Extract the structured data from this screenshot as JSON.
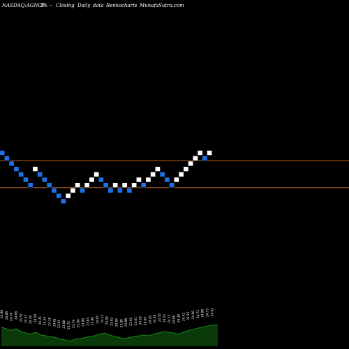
{
  "header": {
    "symbol": "NASDAQ:AGNCP",
    "change": "3% --",
    "closing": "Closing",
    "period": "Daily",
    "data": "data",
    "type": "Renko",
    "charts": "charts",
    "site": "MunafaSutra.com"
  },
  "colors": {
    "background": "#000000",
    "up_brick": "#ffffff",
    "down_brick": "#1f6fe5",
    "reference_line": "#c0641e",
    "volume_fill": "#0a3a0a",
    "volume_edge": "#1aa81a"
  },
  "chart_data": {
    "type": "renko",
    "reference_lines": [
      24.6,
      23.95
    ],
    "bricks": [
      {
        "dir": "down",
        "level": 24.79
      },
      {
        "dir": "down",
        "level": 24.66
      },
      {
        "dir": "down",
        "level": 24.53
      },
      {
        "dir": "down",
        "level": 24.4
      },
      {
        "dir": "down",
        "level": 24.27
      },
      {
        "dir": "down",
        "level": 24.14
      },
      {
        "dir": "down",
        "level": 24.01
      },
      {
        "dir": "up",
        "level": 24.4
      },
      {
        "dir": "down",
        "level": 24.27
      },
      {
        "dir": "down",
        "level": 24.14
      },
      {
        "dir": "down",
        "level": 24.01
      },
      {
        "dir": "down",
        "level": 23.88
      },
      {
        "dir": "down",
        "level": 23.75
      },
      {
        "dir": "down",
        "level": 23.62
      },
      {
        "dir": "up",
        "level": 23.75
      },
      {
        "dir": "up",
        "level": 23.88
      },
      {
        "dir": "up",
        "level": 24.01
      },
      {
        "dir": "down",
        "level": 23.88
      },
      {
        "dir": "up",
        "level": 24.01
      },
      {
        "dir": "up",
        "level": 24.14
      },
      {
        "dir": "up",
        "level": 24.27
      },
      {
        "dir": "down",
        "level": 24.14
      },
      {
        "dir": "down",
        "level": 24.01
      },
      {
        "dir": "down",
        "level": 23.88
      },
      {
        "dir": "up",
        "level": 24.01
      },
      {
        "dir": "down",
        "level": 23.88
      },
      {
        "dir": "up",
        "level": 24.01
      },
      {
        "dir": "down",
        "level": 23.88
      },
      {
        "dir": "up",
        "level": 24.01
      },
      {
        "dir": "up",
        "level": 24.14
      },
      {
        "dir": "down",
        "level": 24.01
      },
      {
        "dir": "up",
        "level": 24.14
      },
      {
        "dir": "up",
        "level": 24.27
      },
      {
        "dir": "up",
        "level": 24.4
      },
      {
        "dir": "down",
        "level": 24.27
      },
      {
        "dir": "down",
        "level": 24.14
      },
      {
        "dir": "down",
        "level": 24.01
      },
      {
        "dir": "up",
        "level": 24.14
      },
      {
        "dir": "up",
        "level": 24.27
      },
      {
        "dir": "up",
        "level": 24.4
      },
      {
        "dir": "up",
        "level": 24.53
      },
      {
        "dir": "up",
        "level": 24.66
      },
      {
        "dir": "up",
        "level": 24.79
      },
      {
        "dir": "down",
        "level": 24.66
      },
      {
        "dir": "up",
        "level": 24.79
      }
    ],
    "labels": [
      "24.98",
      "24.80",
      "24.78",
      "24.68",
      "24.52",
      "24.47",
      "24.38",
      "24.50",
      "24.35",
      "24.24",
      "24.18",
      "24.01",
      "23.95",
      "23.88",
      "23.72",
      "23.79",
      "23.86",
      "23.90",
      "23.83",
      "23.96",
      "24.05",
      "24.12",
      "24.00",
      "23.92",
      "23.95",
      "23.80",
      "23.88",
      "23.92",
      "24.01",
      "24.10",
      "24.04",
      "24.20",
      "24.28",
      "24.35",
      "24.22",
      "24.15",
      "24.08",
      "24.30",
      "24.42",
      "24.55",
      "24.66",
      "24.72",
      "24.80",
      "24.75",
      "24.92"
    ],
    "volume": [
      0.55,
      0.5,
      0.45,
      0.5,
      0.42,
      0.38,
      0.35,
      0.4,
      0.32,
      0.3,
      0.28,
      0.25,
      0.2,
      0.18,
      0.15,
      0.2,
      0.22,
      0.25,
      0.28,
      0.3,
      0.35,
      0.38,
      0.32,
      0.28,
      0.25,
      0.22,
      0.25,
      0.28,
      0.3,
      0.32,
      0.3,
      0.35,
      0.38,
      0.42,
      0.4,
      0.38,
      0.35,
      0.4,
      0.45,
      0.48,
      0.52,
      0.55,
      0.58,
      0.6,
      0.62
    ]
  }
}
